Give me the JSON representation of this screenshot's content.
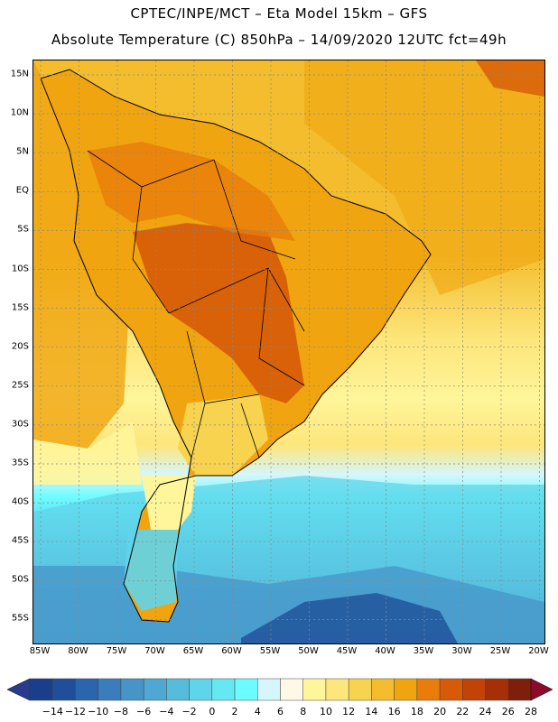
{
  "header": {
    "line1": "CPTEC/INPE/MCT –  Eta Model 15km – GFS",
    "line2": "Absolute Temperature (C) 850hPa – 14/09/2020 12UTC fct=49h"
  },
  "map": {
    "lat_labels": [
      "15N",
      "10N",
      "5N",
      "EQ",
      "5S",
      "10S",
      "15S",
      "20S",
      "25S",
      "30S",
      "35S",
      "40S",
      "45S",
      "50S",
      "55S"
    ],
    "lon_labels": [
      "85W",
      "80W",
      "75W",
      "70W",
      "65W",
      "60W",
      "55W",
      "50W",
      "45W",
      "40W",
      "35W",
      "30W",
      "25W",
      "20W"
    ]
  },
  "colorbar": {
    "labels": [
      "-14",
      "-12",
      "-10",
      "-8",
      "-6",
      "-4",
      "-2",
      "0",
      "2",
      "4",
      "6",
      "8",
      "10",
      "12",
      "14",
      "16",
      "18",
      "20",
      "22",
      "24",
      "26",
      "28"
    ],
    "colors": [
      "#1a3e8c",
      "#1f4f99",
      "#2a65ad",
      "#3a7dbd",
      "#4694c8",
      "#4fa8d3",
      "#56bcdc",
      "#5fd4ea",
      "#66e8f2",
      "#6cfcff",
      "#d6f6fb",
      "#fff8e4",
      "#fff59a",
      "#fde67b",
      "#f7d34f",
      "#f3bd2d",
      "#f0a510",
      "#e97c0a",
      "#d65a08",
      "#c24207",
      "#a62f08",
      "#7f1f0b"
    ],
    "low_color": "#283b8d",
    "high_color": "#8e0a2a"
  }
}
